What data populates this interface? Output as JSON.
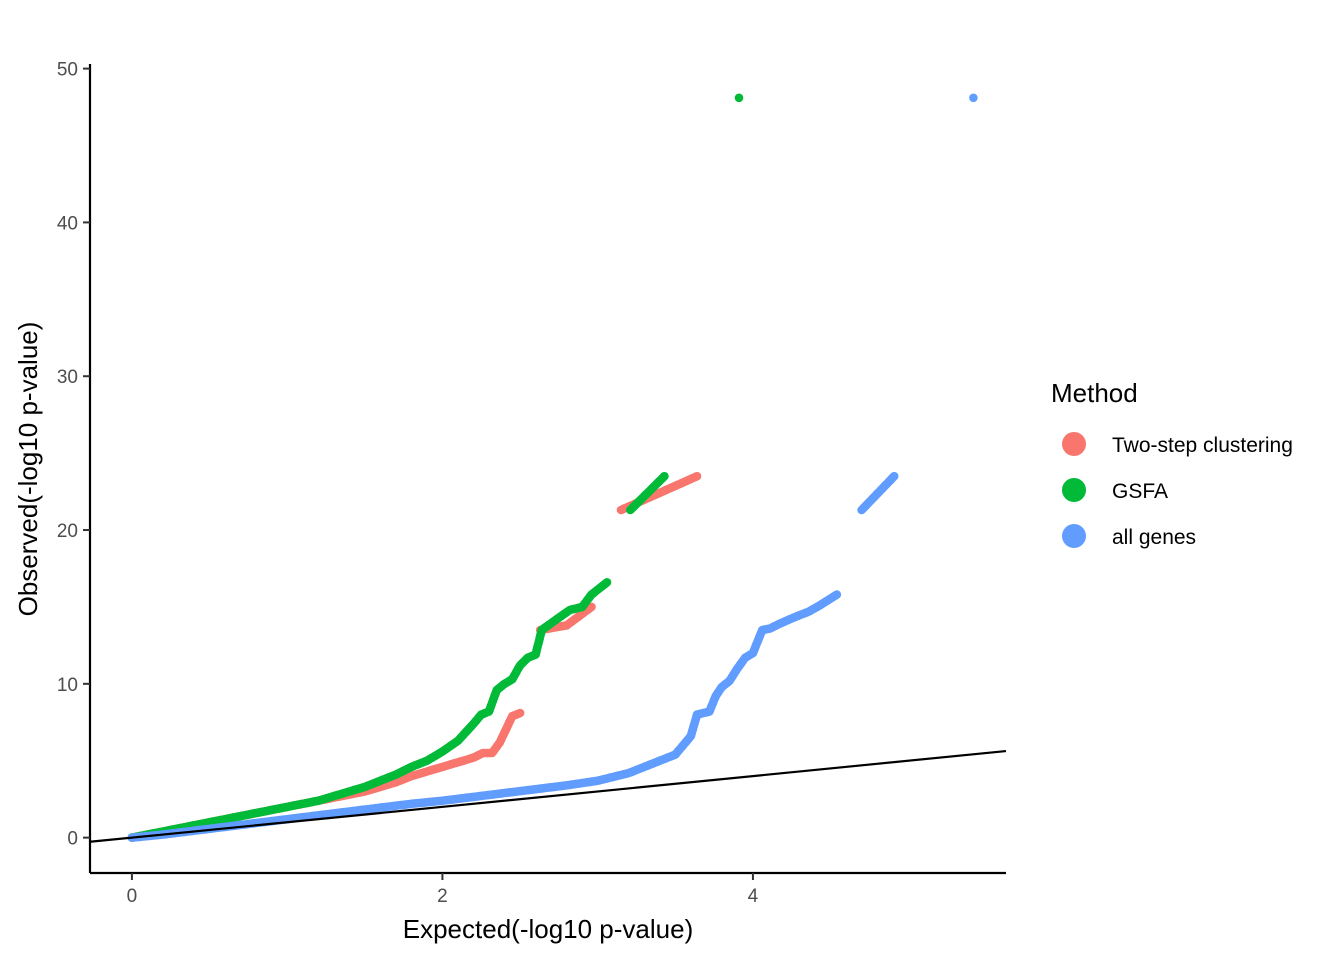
{
  "chart_data": {
    "type": "scatter",
    "title": "",
    "xlabel": "Expected(-log10 p-value)",
    "ylabel": "Observed(-log10 p-value)",
    "xlim": [
      -0.27,
      5.63
    ],
    "ylim": [
      -2.3,
      50.3
    ],
    "xticks": [
      0,
      2,
      4
    ],
    "yticks": [
      0,
      10,
      20,
      30,
      40,
      50
    ],
    "xtick_labels": [
      "0",
      "2",
      "4"
    ],
    "ytick_labels": [
      "0",
      "10",
      "20",
      "30",
      "40",
      "50"
    ],
    "grid": false,
    "reference_line": {
      "slope": 1,
      "intercept": 0,
      "color": "#000000"
    },
    "legend": {
      "title": "Method",
      "placement": "right",
      "entries": [
        {
          "label": "Two-step clustering",
          "color": "#F8766D"
        },
        {
          "label": "GSFA",
          "color": "#00BA38"
        },
        {
          "label": "all genes",
          "color": "#619CFF"
        }
      ]
    },
    "series": [
      {
        "name": "Two-step clustering",
        "color": "#F8766D",
        "x": [
          0,
          0.1,
          0.2,
          0.3,
          0.4,
          0.5,
          0.6,
          0.7,
          0.8,
          0.9,
          1.0,
          1.1,
          1.2,
          1.3,
          1.4,
          1.5,
          1.6,
          1.7,
          1.8,
          1.9,
          2.0,
          2.1,
          2.2,
          2.26,
          2.32,
          2.37,
          2.45,
          2.5,
          2.63,
          2.8,
          2.96,
          3.15,
          3.64
        ],
        "y": [
          0,
          0.2,
          0.4,
          0.6,
          0.8,
          1.0,
          1.2,
          1.4,
          1.6,
          1.8,
          2.0,
          2.2,
          2.4,
          2.6,
          2.8,
          3.0,
          3.3,
          3.6,
          4.0,
          4.3,
          4.6,
          4.9,
          5.2,
          5.5,
          5.5,
          6.2,
          7.9,
          8.1,
          13.5,
          13.8,
          15.0,
          21.3,
          23.5
        ]
      },
      {
        "name": "GSFA",
        "color": "#00BA38",
        "x": [
          0,
          0.1,
          0.2,
          0.3,
          0.4,
          0.5,
          0.6,
          0.7,
          0.8,
          0.9,
          1.0,
          1.1,
          1.2,
          1.3,
          1.4,
          1.5,
          1.6,
          1.7,
          1.8,
          1.9,
          2.0,
          2.1,
          2.2,
          2.25,
          2.3,
          2.35,
          2.4,
          2.45,
          2.5,
          2.55,
          2.6,
          2.64,
          2.68,
          2.75,
          2.82,
          2.9,
          2.96,
          3.06,
          3.21,
          3.43,
          3.91
        ],
        "y": [
          0,
          0.2,
          0.4,
          0.6,
          0.8,
          1.0,
          1.2,
          1.4,
          1.6,
          1.8,
          2.0,
          2.2,
          2.4,
          2.7,
          3.0,
          3.3,
          3.7,
          4.1,
          4.6,
          5.0,
          5.6,
          6.3,
          7.4,
          8.0,
          8.2,
          9.6,
          10.0,
          10.3,
          11.2,
          11.7,
          11.9,
          13.5,
          13.8,
          14.3,
          14.8,
          15.0,
          15.8,
          16.6,
          21.3,
          23.5,
          48.1
        ]
      },
      {
        "name": "all genes",
        "color": "#619CFF",
        "x": [
          0,
          0.2,
          0.4,
          0.6,
          0.8,
          1.0,
          1.2,
          1.4,
          1.6,
          1.8,
          2.0,
          2.2,
          2.4,
          2.6,
          2.8,
          3.0,
          3.2,
          3.4,
          3.5,
          3.55,
          3.6,
          3.64,
          3.68,
          3.72,
          3.76,
          3.8,
          3.85,
          3.9,
          3.95,
          4.0,
          4.06,
          4.11,
          4.17,
          4.26,
          4.36,
          4.43,
          4.54,
          4.7,
          4.91,
          5.42
        ],
        "y": [
          0,
          0.2,
          0.45,
          0.7,
          0.95,
          1.2,
          1.45,
          1.7,
          1.95,
          2.2,
          2.4,
          2.65,
          2.9,
          3.15,
          3.4,
          3.7,
          4.2,
          5.0,
          5.4,
          6.0,
          6.6,
          8.0,
          8.1,
          8.2,
          9.2,
          9.8,
          10.2,
          11.0,
          11.7,
          12.0,
          13.5,
          13.6,
          13.9,
          14.3,
          14.7,
          15.1,
          15.8,
          21.3,
          23.5,
          48.1
        ]
      }
    ]
  }
}
